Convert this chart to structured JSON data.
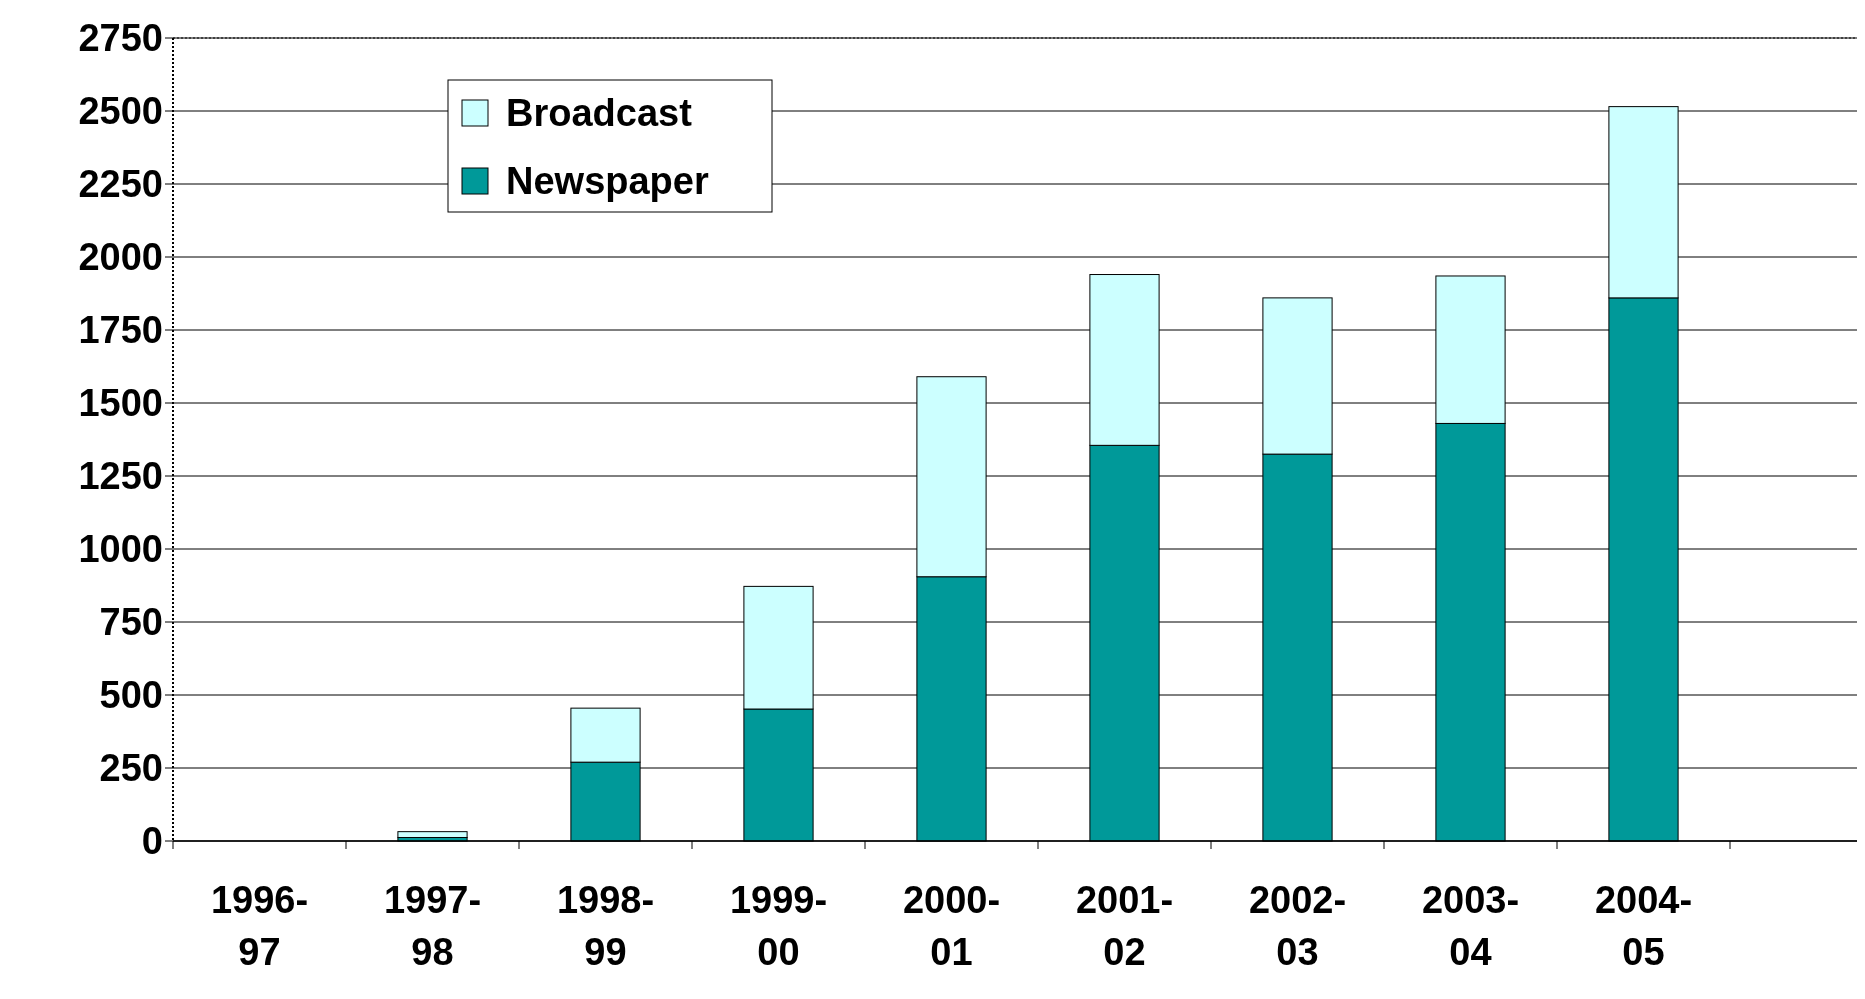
{
  "chart_data": {
    "type": "bar",
    "stacked": true,
    "categories": [
      "1996-\n97",
      "1997-\n98",
      "1998-\n99",
      "1999-\n00",
      "2000-\n01",
      "2001-\n02",
      "2002-\n03",
      "2003-\n04",
      "2004-\n05",
      null
    ],
    "series": [
      {
        "name": "Newspaper",
        "color": "#009999",
        "values": [
          0,
          12,
          270,
          452,
          905,
          1355,
          1325,
          1430,
          1860,
          null
        ]
      },
      {
        "name": "Broadcast",
        "color": "#ccffff",
        "values": [
          0,
          20,
          185,
          420,
          685,
          585,
          535,
          505,
          655,
          null
        ]
      }
    ],
    "ylim": [
      0,
      2750
    ],
    "yticks": [
      0,
      250,
      500,
      750,
      1000,
      1250,
      1500,
      1750,
      2000,
      2250,
      2500,
      2750
    ],
    "grid": "y",
    "legend": "top left"
  }
}
